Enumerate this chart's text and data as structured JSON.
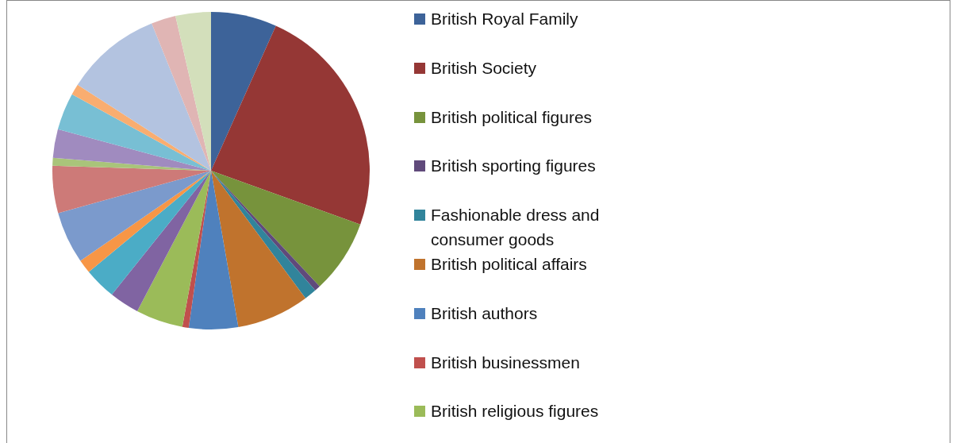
{
  "chart_data": {
    "type": "pie",
    "categories": [
      "British Royal Family",
      "British Society",
      "British political figures",
      "British sporting figures",
      "Fashionable dress and consumer goods",
      "British political affairs",
      "British authors",
      "British businessmen",
      "British religious figures",
      null,
      null,
      null,
      null,
      null,
      null,
      null,
      null,
      null,
      null,
      null,
      null
    ],
    "values": [
      6.7,
      23.8,
      7.5,
      0.6,
      1.25,
      7.4,
      5,
      0.65,
      4.8,
      3.05,
      3.25,
      1.4,
      5.3,
      4.8,
      0.8,
      2.9,
      3.8,
      1.1,
      9.8,
      2.5,
      3.6
    ],
    "colors": [
      "#3d6399",
      "#953735",
      "#77933c",
      "#604a7b",
      "#31849b",
      "#c0732d",
      "#4f81bd",
      "#c0504d",
      "#9bbb59",
      "#8064a2",
      "#4bacc6",
      "#f79646",
      "#7b9acc",
      "#cd7a78",
      "#a9c47a",
      "#a08bbf",
      "#78bfd4",
      "#f9ad70",
      "#b3c3e0",
      "#e0b5b4",
      "#d3dfbb"
    ],
    "legend": "right"
  }
}
